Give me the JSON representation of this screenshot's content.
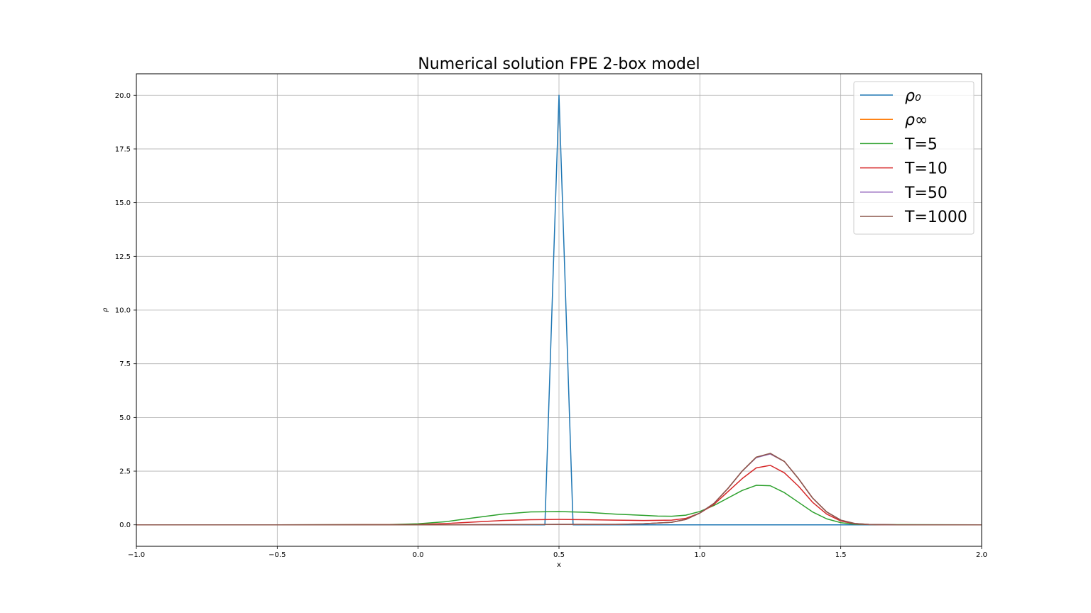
{
  "chart_data": {
    "type": "line",
    "title": "Numerical solution FPE 2-box model",
    "xlabel": "x",
    "ylabel": "ρ",
    "xlim": [
      -1.0,
      2.0
    ],
    "ylim": [
      -1.0,
      21.0
    ],
    "grid": true,
    "legend_position": "top-right",
    "x_ticks": [
      {
        "value": -1.0,
        "label": "−1.0"
      },
      {
        "value": -0.5,
        "label": "−0.5"
      },
      {
        "value": 0.0,
        "label": "0.0"
      },
      {
        "value": 0.5,
        "label": "0.5"
      },
      {
        "value": 1.0,
        "label": "1.0"
      },
      {
        "value": 1.5,
        "label": "1.5"
      },
      {
        "value": 2.0,
        "label": "2.0"
      }
    ],
    "y_ticks": [
      {
        "value": 0.0,
        "label": "0.0"
      },
      {
        "value": 2.5,
        "label": "2.5"
      },
      {
        "value": 5.0,
        "label": "5.0"
      },
      {
        "value": 7.5,
        "label": "7.5"
      },
      {
        "value": 10.0,
        "label": "10.0"
      },
      {
        "value": 12.5,
        "label": "12.5"
      },
      {
        "value": 15.0,
        "label": "15.0"
      },
      {
        "value": 17.5,
        "label": "17.5"
      },
      {
        "value": 20.0,
        "label": "20.0"
      }
    ],
    "series": [
      {
        "name": "ρ₀",
        "color": "#1f77b4",
        "x": [
          -1.0,
          0.45,
          0.5,
          0.55,
          2.0
        ],
        "y": [
          0.0,
          0.0,
          20.0,
          0.0,
          0.0
        ]
      },
      {
        "name": "ρ∞",
        "color": "#ff7f0e",
        "x": [
          -1.0,
          -0.5,
          0.0,
          0.1,
          0.3,
          0.5,
          0.7,
          0.8,
          0.9,
          0.95,
          1.0,
          1.05,
          1.1,
          1.15,
          1.2,
          1.25,
          1.3,
          1.35,
          1.4,
          1.45,
          1.5,
          1.55,
          1.6,
          1.7,
          2.0
        ],
        "y": [
          0.0,
          0.0,
          0.0,
          0.0,
          0.01,
          0.02,
          0.02,
          0.05,
          0.12,
          0.25,
          0.55,
          1.0,
          1.7,
          2.5,
          3.15,
          3.3,
          2.95,
          2.15,
          1.25,
          0.6,
          0.22,
          0.06,
          0.02,
          0.0,
          0.0
        ]
      },
      {
        "name": "T=5",
        "color": "#2ca02c",
        "x": [
          -1.0,
          -0.5,
          -0.1,
          0.0,
          0.1,
          0.2,
          0.3,
          0.4,
          0.5,
          0.6,
          0.7,
          0.8,
          0.85,
          0.9,
          0.95,
          1.0,
          1.05,
          1.1,
          1.15,
          1.2,
          1.25,
          1.3,
          1.35,
          1.4,
          1.45,
          1.5,
          1.55,
          1.6,
          2.0
        ],
        "y": [
          0.0,
          0.0,
          0.01,
          0.05,
          0.15,
          0.33,
          0.5,
          0.6,
          0.62,
          0.58,
          0.5,
          0.44,
          0.41,
          0.4,
          0.45,
          0.62,
          0.9,
          1.25,
          1.6,
          1.84,
          1.82,
          1.5,
          1.05,
          0.6,
          0.28,
          0.1,
          0.03,
          0.01,
          0.0
        ]
      },
      {
        "name": "T=10",
        "color": "#d62728",
        "x": [
          -1.0,
          -0.5,
          0.0,
          0.1,
          0.2,
          0.3,
          0.4,
          0.5,
          0.6,
          0.7,
          0.8,
          0.9,
          0.95,
          1.0,
          1.05,
          1.1,
          1.15,
          1.2,
          1.25,
          1.3,
          1.35,
          1.4,
          1.45,
          1.5,
          1.55,
          1.6,
          1.7,
          2.0
        ],
        "y": [
          0.0,
          0.0,
          0.01,
          0.06,
          0.13,
          0.2,
          0.24,
          0.25,
          0.24,
          0.22,
          0.2,
          0.22,
          0.3,
          0.55,
          0.95,
          1.55,
          2.15,
          2.65,
          2.77,
          2.42,
          1.8,
          1.05,
          0.5,
          0.18,
          0.05,
          0.01,
          0.0,
          0.0
        ]
      },
      {
        "name": "T=50",
        "color": "#9467bd",
        "x": [
          -1.0,
          -0.5,
          0.0,
          0.1,
          0.3,
          0.5,
          0.7,
          0.8,
          0.9,
          0.95,
          1.0,
          1.05,
          1.1,
          1.15,
          1.2,
          1.25,
          1.3,
          1.35,
          1.4,
          1.45,
          1.5,
          1.55,
          1.6,
          1.7,
          2.0
        ],
        "y": [
          0.0,
          0.0,
          0.0,
          0.0,
          0.01,
          0.02,
          0.02,
          0.05,
          0.12,
          0.25,
          0.55,
          1.0,
          1.7,
          2.5,
          3.13,
          3.3,
          2.95,
          2.15,
          1.25,
          0.6,
          0.22,
          0.06,
          0.02,
          0.0,
          0.0
        ]
      },
      {
        "name": "T=1000",
        "color": "#8c564b",
        "x": [
          -1.0,
          -0.5,
          0.0,
          0.1,
          0.3,
          0.5,
          0.7,
          0.8,
          0.9,
          0.95,
          1.0,
          1.05,
          1.1,
          1.15,
          1.2,
          1.25,
          1.3,
          1.35,
          1.4,
          1.45,
          1.5,
          1.55,
          1.6,
          1.7,
          2.0
        ],
        "y": [
          0.0,
          0.0,
          0.0,
          0.0,
          0.01,
          0.02,
          0.02,
          0.05,
          0.12,
          0.25,
          0.55,
          1.0,
          1.7,
          2.5,
          3.15,
          3.33,
          2.95,
          2.15,
          1.25,
          0.6,
          0.22,
          0.06,
          0.02,
          0.0,
          0.0
        ]
      }
    ]
  }
}
